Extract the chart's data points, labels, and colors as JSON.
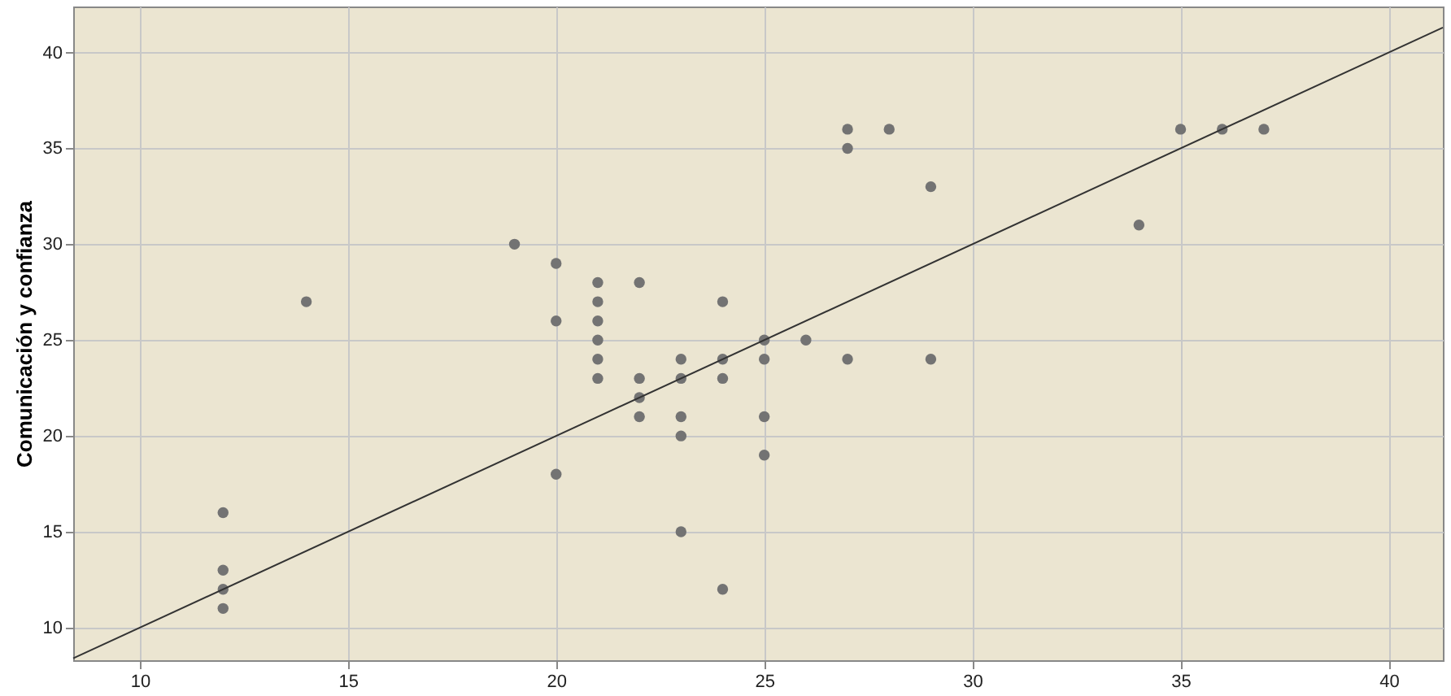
{
  "chart_data": {
    "type": "scatter",
    "ylabel": "Comunicación y confianza",
    "xlim": [
      8.4,
      41.3
    ],
    "ylim": [
      8.3,
      42.4
    ],
    "xticks": [
      10,
      15,
      20,
      25,
      30,
      35,
      40
    ],
    "yticks": [
      10,
      15,
      20,
      25,
      30,
      35,
      40
    ],
    "grid": true,
    "series": [
      {
        "marker": "circle",
        "color": "#737373",
        "x": [
          12,
          12,
          12,
          12,
          14,
          19,
          20,
          20,
          20,
          21,
          21,
          21,
          21,
          21,
          21,
          22,
          22,
          22,
          22,
          23,
          23,
          23,
          23,
          23,
          24,
          24,
          24,
          24,
          25,
          25,
          25,
          25,
          26,
          27,
          27,
          27,
          28,
          29,
          29,
          34,
          35,
          36,
          37
        ],
        "values": [
          16,
          13,
          12,
          11,
          27,
          30,
          29,
          26,
          18,
          28,
          27,
          26,
          25,
          24,
          23,
          28,
          23,
          22,
          21,
          24,
          23,
          21,
          20,
          15,
          27,
          24,
          23,
          12,
          25,
          24,
          21,
          19,
          25,
          36,
          35,
          24,
          36,
          33,
          24,
          31,
          36,
          36,
          36
        ]
      },
      {
        "type": "line",
        "marker": "none",
        "color": "#333333",
        "x": [
          8.4,
          41.3
        ],
        "values": [
          8.4,
          41.3
        ]
      }
    ]
  }
}
